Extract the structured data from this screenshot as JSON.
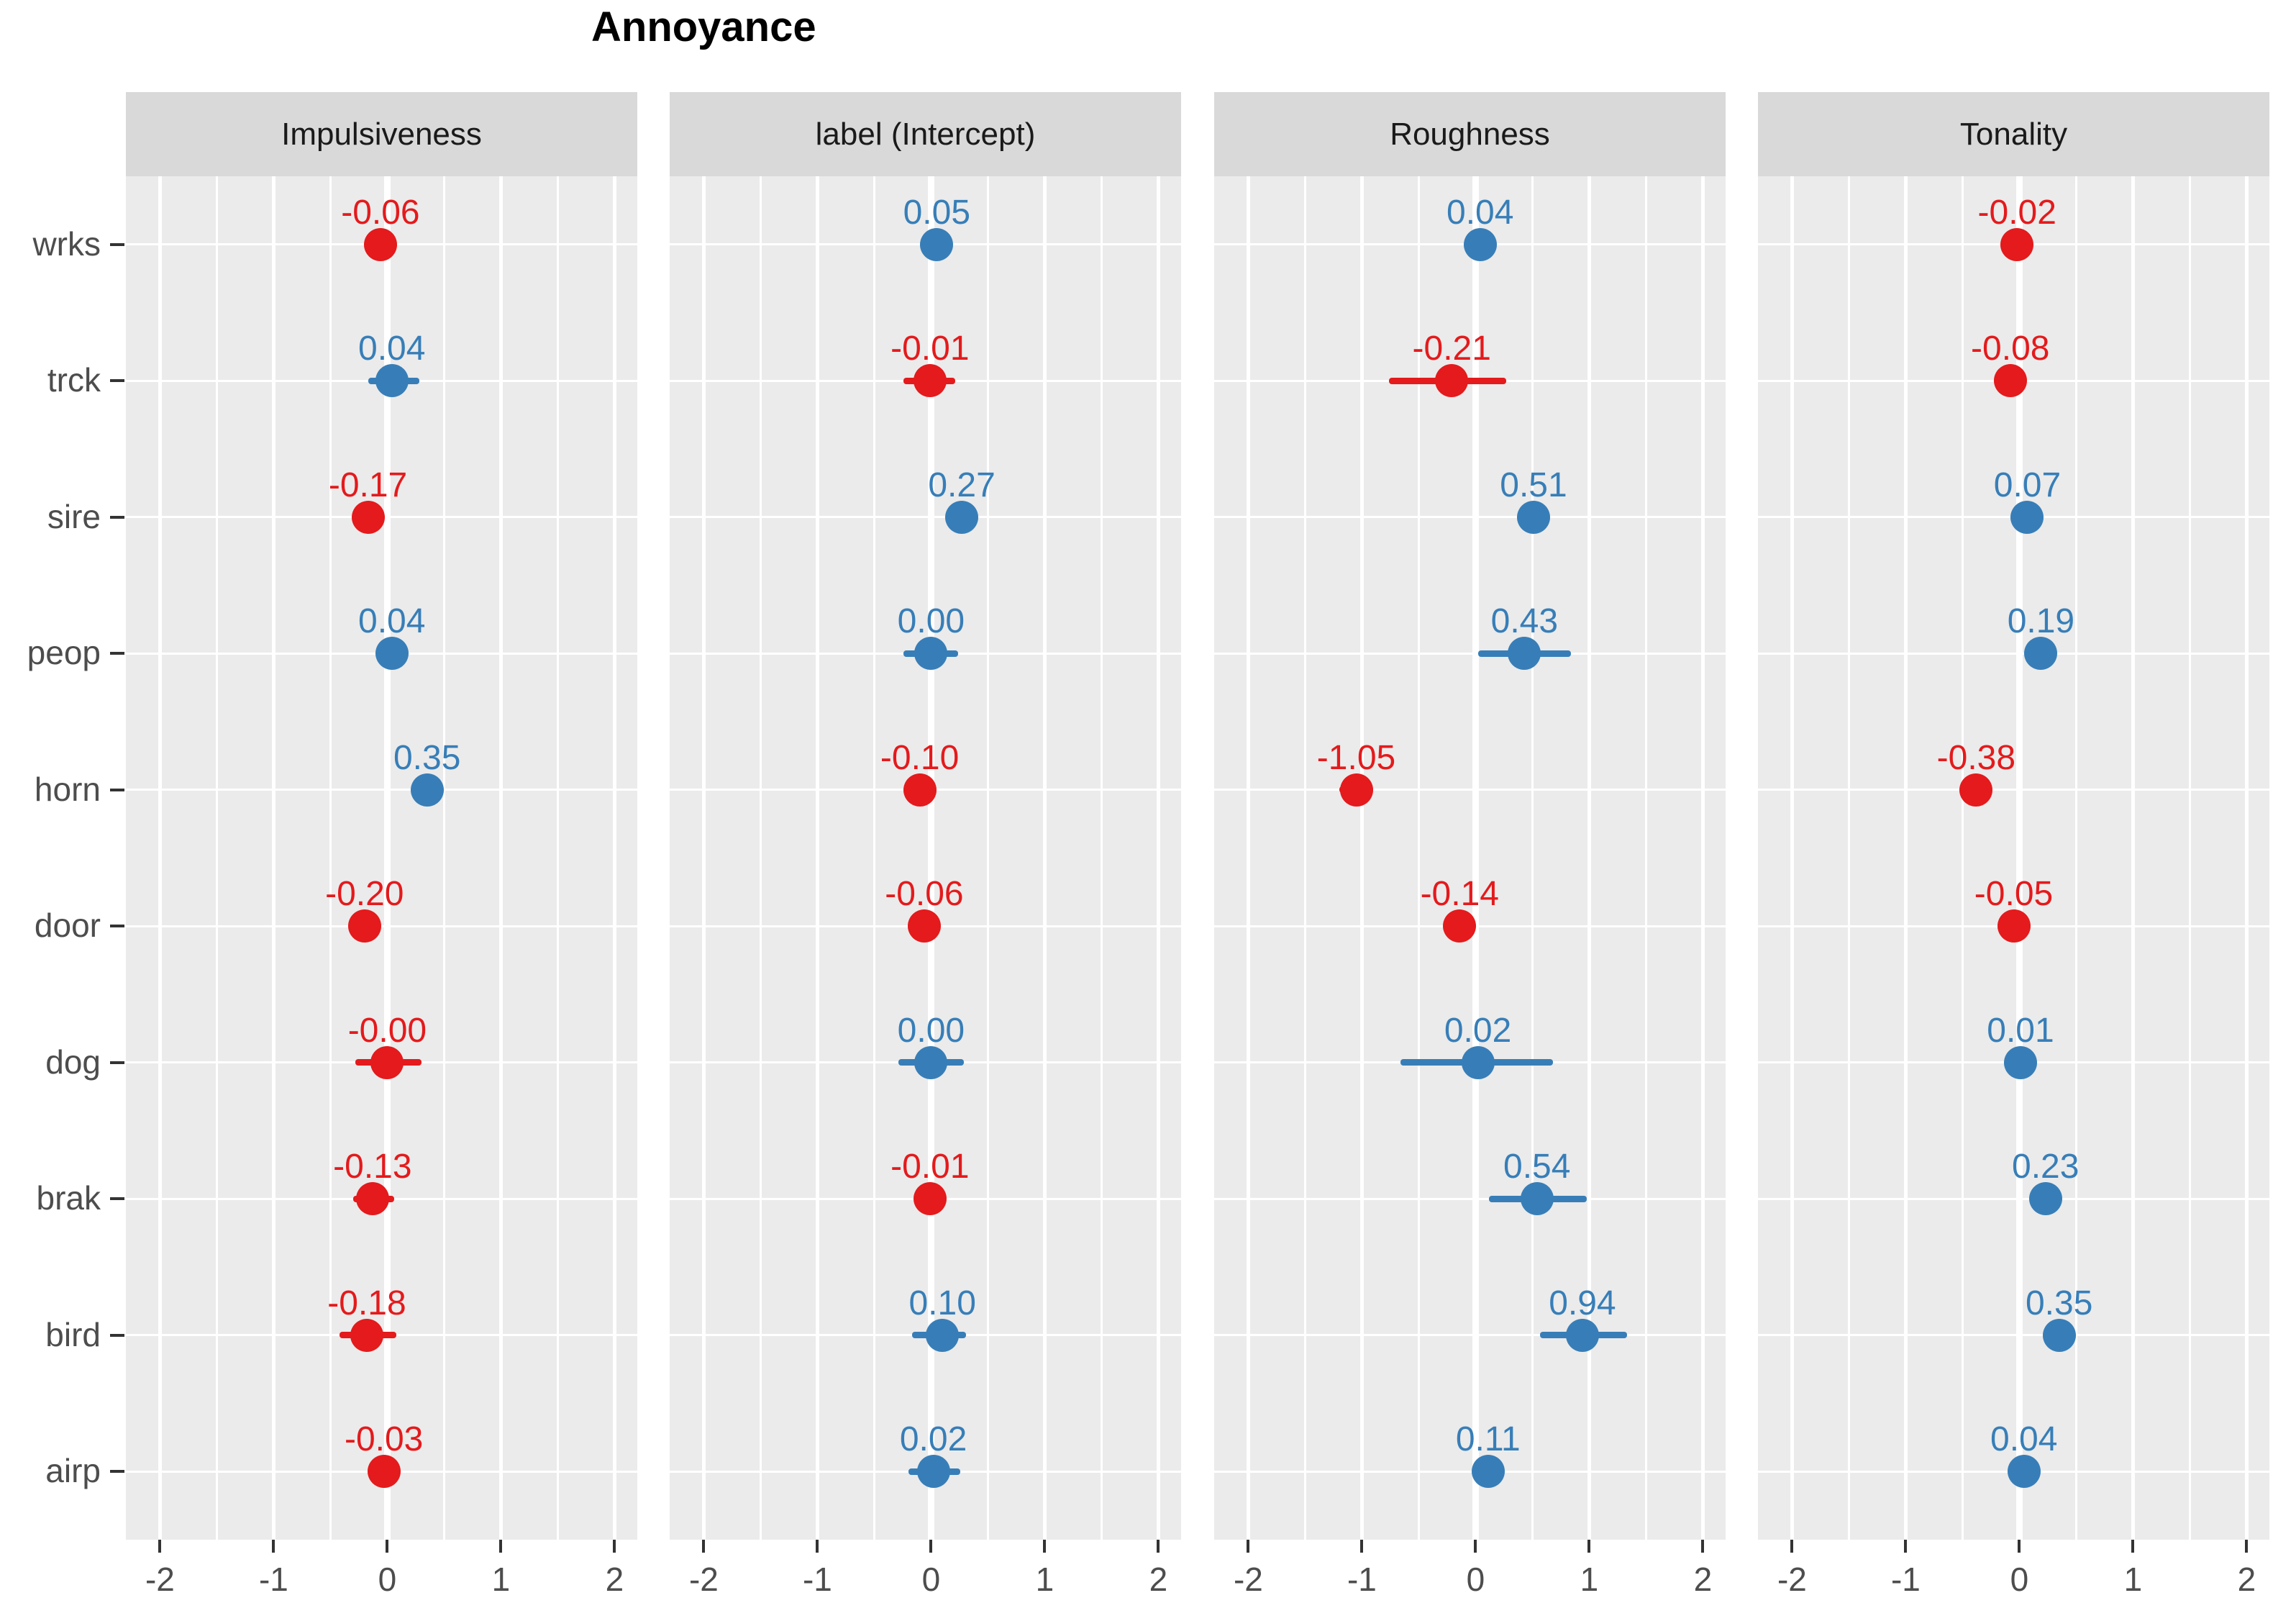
{
  "title": "Annoyance",
  "colors": {
    "positive": "#377eb8",
    "negative": "#e41a1c",
    "panel_bg": "#ebebeb",
    "strip_bg": "#d9d9d9",
    "grid": "#ffffff",
    "axis_text": "#4d4d4d",
    "tick": "#333333",
    "title_text": "#000000"
  },
  "chart_data": {
    "type": "scatter",
    "title": "Annoyance",
    "subtitle": "",
    "facets": [
      "Impulsiveness",
      "label (Intercept)",
      "Roughness",
      "Tonality"
    ],
    "categories": [
      "wrks",
      "trck",
      "sire",
      "peop",
      "horn",
      "door",
      "dog",
      "brak",
      "bird",
      "airp"
    ],
    "x_ticks": [
      -2,
      -1,
      0,
      1,
      2
    ],
    "x_tick_labels": [
      "-2",
      "-1",
      "0",
      "1",
      "2"
    ],
    "xlim": [
      -2.3,
      2.2
    ],
    "grid": "major-and-minor-x-white, major-y-white, zero-line-emphasized",
    "legend_position": "none",
    "point_color_rule": "labels starting with '-' are red (negative), others blue (positive)",
    "series": [
      {
        "name": "Impulsiveness",
        "points": [
          {
            "category": "wrks",
            "label": "-0.06",
            "value": -0.06,
            "ci": [
              -0.2,
              0.08
            ]
          },
          {
            "category": "trck",
            "label": "0.04",
            "value": 0.04,
            "ci": [
              -0.17,
              0.28
            ]
          },
          {
            "category": "sire",
            "label": "-0.17",
            "value": -0.17,
            "ci": [
              -0.24,
              -0.1
            ]
          },
          {
            "category": "peop",
            "label": "0.04",
            "value": 0.04,
            "ci": [
              -0.07,
              0.15
            ]
          },
          {
            "category": "horn",
            "label": "0.35",
            "value": 0.35,
            "ci": [
              0.28,
              0.42
            ]
          },
          {
            "category": "door",
            "label": "-0.20",
            "value": -0.2,
            "ci": [
              -0.32,
              -0.07
            ]
          },
          {
            "category": "dog",
            "label": "-0.00",
            "value": -0.0,
            "ci": [
              -0.28,
              0.3
            ]
          },
          {
            "category": "brak",
            "label": "-0.13",
            "value": -0.13,
            "ci": [
              -0.3,
              0.06
            ]
          },
          {
            "category": "bird",
            "label": "-0.18",
            "value": -0.18,
            "ci": [
              -0.42,
              0.08
            ]
          },
          {
            "category": "airp",
            "label": "-0.03",
            "value": -0.03,
            "ci": [
              -0.14,
              0.1
            ]
          }
        ]
      },
      {
        "name": "label (Intercept)",
        "points": [
          {
            "category": "wrks",
            "label": "0.05",
            "value": 0.05,
            "ci": [
              -0.03,
              0.13
            ]
          },
          {
            "category": "trck",
            "label": "-0.01",
            "value": -0.01,
            "ci": [
              -0.24,
              0.21
            ]
          },
          {
            "category": "sire",
            "label": "0.27",
            "value": 0.27,
            "ci": [
              0.2,
              0.34
            ]
          },
          {
            "category": "peop",
            "label": "0.00",
            "value": 0.0,
            "ci": [
              -0.24,
              0.24
            ]
          },
          {
            "category": "horn",
            "label": "-0.10",
            "value": -0.1,
            "ci": [
              -0.17,
              -0.03
            ]
          },
          {
            "category": "door",
            "label": "-0.06",
            "value": -0.06,
            "ci": [
              -0.13,
              0.01
            ]
          },
          {
            "category": "dog",
            "label": "0.00",
            "value": 0.0,
            "ci": [
              -0.29,
              0.29
            ]
          },
          {
            "category": "brak",
            "label": "-0.01",
            "value": -0.01,
            "ci": [
              -0.13,
              0.1
            ]
          },
          {
            "category": "bird",
            "label": "0.10",
            "value": 0.1,
            "ci": [
              -0.17,
              0.31
            ]
          },
          {
            "category": "airp",
            "label": "0.02",
            "value": 0.02,
            "ci": [
              -0.2,
              0.26
            ]
          }
        ]
      },
      {
        "name": "Roughness",
        "points": [
          {
            "category": "wrks",
            "label": "0.04",
            "value": 0.04,
            "ci": [
              -0.04,
              0.12
            ]
          },
          {
            "category": "trck",
            "label": "-0.21",
            "value": -0.21,
            "ci": [
              -0.76,
              0.27
            ]
          },
          {
            "category": "sire",
            "label": "0.51",
            "value": 0.51,
            "ci": [
              0.42,
              0.6
            ]
          },
          {
            "category": "peop",
            "label": "0.43",
            "value": 0.43,
            "ci": [
              0.02,
              0.84
            ]
          },
          {
            "category": "horn",
            "label": "-1.05",
            "value": -1.05,
            "ci": [
              -1.2,
              -0.9
            ]
          },
          {
            "category": "door",
            "label": "-0.14",
            "value": -0.14,
            "ci": [
              -0.22,
              -0.06
            ]
          },
          {
            "category": "dog",
            "label": "0.02",
            "value": 0.02,
            "ci": [
              -0.66,
              0.68
            ]
          },
          {
            "category": "brak",
            "label": "0.54",
            "value": 0.54,
            "ci": [
              0.12,
              0.98
            ]
          },
          {
            "category": "bird",
            "label": "0.94",
            "value": 0.94,
            "ci": [
              0.57,
              1.33
            ]
          },
          {
            "category": "airp",
            "label": "0.11",
            "value": 0.11,
            "ci": [
              0.0,
              0.22
            ]
          }
        ]
      },
      {
        "name": "Tonality",
        "points": [
          {
            "category": "wrks",
            "label": "-0.02",
            "value": -0.02,
            "ci": [
              -0.08,
              0.04
            ]
          },
          {
            "category": "trck",
            "label": "-0.08",
            "value": -0.08,
            "ci": [
              -0.16,
              0.0
            ]
          },
          {
            "category": "sire",
            "label": "0.07",
            "value": 0.07,
            "ci": [
              0.0,
              0.14
            ]
          },
          {
            "category": "peop",
            "label": "0.19",
            "value": 0.19,
            "ci": [
              0.12,
              0.26
            ]
          },
          {
            "category": "horn",
            "label": "-0.38",
            "value": -0.38,
            "ci": [
              -0.46,
              -0.3
            ]
          },
          {
            "category": "door",
            "label": "-0.05",
            "value": -0.05,
            "ci": [
              -0.12,
              0.02
            ]
          },
          {
            "category": "dog",
            "label": "0.01",
            "value": 0.01,
            "ci": [
              -0.06,
              0.08
            ]
          },
          {
            "category": "brak",
            "label": "0.23",
            "value": 0.23,
            "ci": [
              0.15,
              0.31
            ]
          },
          {
            "category": "bird",
            "label": "0.35",
            "value": 0.35,
            "ci": [
              0.26,
              0.44
            ]
          },
          {
            "category": "airp",
            "label": "0.04",
            "value": 0.04,
            "ci": [
              -0.03,
              0.11
            ]
          }
        ]
      }
    ]
  }
}
